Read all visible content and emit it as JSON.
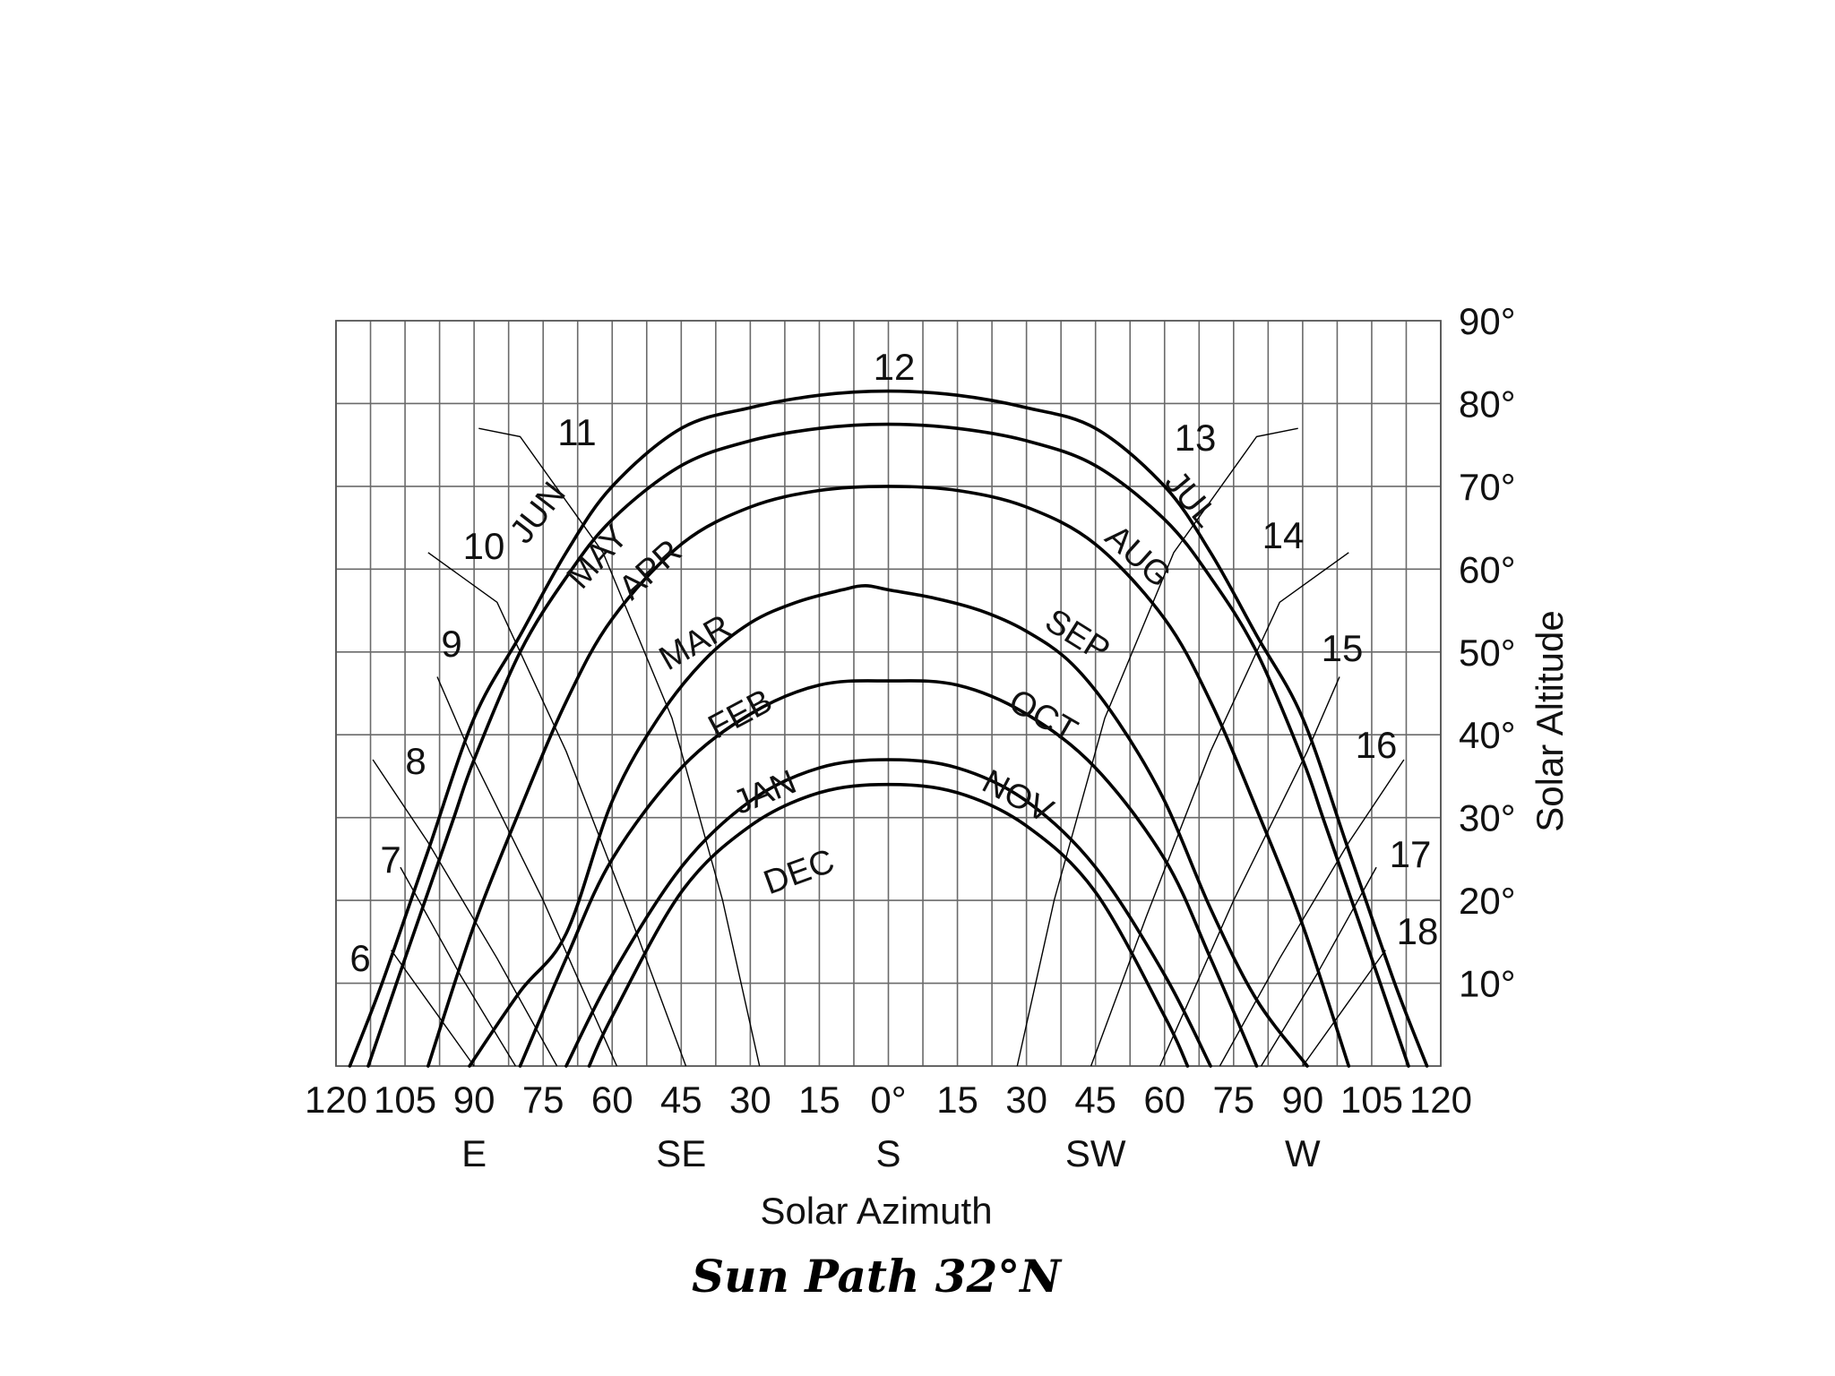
{
  "chart_data": {
    "type": "line",
    "title": "Sun Path 32°N",
    "xlabel": "Solar Azimuth",
    "ylabel": "Solar Altitude",
    "xlim": [
      -120,
      120
    ],
    "ylim": [
      0,
      90
    ],
    "grid": true,
    "x_ticks": [
      {
        "value": -120,
        "label": "120"
      },
      {
        "value": -105,
        "label": "105"
      },
      {
        "value": -90,
        "label": "90"
      },
      {
        "value": -75,
        "label": "75"
      },
      {
        "value": -60,
        "label": "60"
      },
      {
        "value": -45,
        "label": "45"
      },
      {
        "value": -30,
        "label": "30"
      },
      {
        "value": -15,
        "label": "15"
      },
      {
        "value": 0,
        "label": "0°"
      },
      {
        "value": 15,
        "label": "15"
      },
      {
        "value": 30,
        "label": "30"
      },
      {
        "value": 45,
        "label": "45"
      },
      {
        "value": 60,
        "label": "60"
      },
      {
        "value": 75,
        "label": "75"
      },
      {
        "value": 90,
        "label": "90"
      },
      {
        "value": 105,
        "label": "105"
      },
      {
        "value": 120,
        "label": "120"
      }
    ],
    "compass_labels": [
      {
        "value": -90,
        "label": "E"
      },
      {
        "value": -45,
        "label": "SE"
      },
      {
        "value": 0,
        "label": "S"
      },
      {
        "value": 45,
        "label": "SW"
      },
      {
        "value": 90,
        "label": "W"
      }
    ],
    "y_ticks": [
      {
        "value": 10,
        "label": "10°"
      },
      {
        "value": 20,
        "label": "20°"
      },
      {
        "value": 30,
        "label": "30°"
      },
      {
        "value": 40,
        "label": "40°"
      },
      {
        "value": 50,
        "label": "50°"
      },
      {
        "value": 60,
        "label": "60°"
      },
      {
        "value": 70,
        "label": "70°"
      },
      {
        "value": 80,
        "label": "80°"
      },
      {
        "value": 90,
        "label": "90°"
      }
    ],
    "month_series": [
      {
        "name": "JUN",
        "x": [
          -117,
          -110,
          -100,
          -90,
          -80,
          -70,
          -60,
          -45,
          -30,
          -15,
          0,
          15,
          30,
          45,
          60,
          70,
          80,
          90,
          100,
          110,
          117
        ],
        "y": [
          0,
          10,
          26,
          42,
          52,
          62,
          70,
          77,
          79.5,
          81,
          81.5,
          81,
          79.5,
          77,
          70,
          62,
          52,
          42,
          26,
          10,
          0
        ]
      },
      {
        "name": "MAY",
        "x": [
          -113,
          -105,
          -95,
          -90,
          -80,
          -70,
          -60,
          -45,
          -30,
          -15,
          0,
          15,
          30,
          45,
          60,
          70,
          80,
          90,
          95,
          105,
          113
        ],
        "y": [
          0,
          13,
          29,
          37,
          50,
          59,
          66,
          72.5,
          75.5,
          77,
          77.5,
          77,
          75.5,
          72.5,
          66,
          59,
          50,
          37,
          29,
          13,
          0
        ]
      },
      {
        "name": "APR",
        "x": [
          -100,
          -90,
          -80,
          -70,
          -60,
          -45,
          -30,
          -15,
          0,
          15,
          30,
          45,
          60,
          70,
          80,
          90,
          100
        ],
        "y": [
          0,
          17,
          31,
          44,
          54,
          63,
          67.5,
          69.5,
          70,
          69.5,
          67.5,
          63,
          54,
          44,
          31,
          17,
          0
        ]
      },
      {
        "name": "MAR",
        "x": [
          -91,
          -80,
          -70,
          -60,
          -50,
          -40,
          -30,
          -20,
          -10,
          -5,
          0,
          10,
          20,
          30,
          40,
          50,
          60,
          70,
          80,
          91
        ],
        "y": [
          0,
          9,
          16,
          32,
          42,
          49,
          53.5,
          56,
          57.5,
          58,
          57.5,
          56.5,
          55,
          52.5,
          48.5,
          41.5,
          32,
          19,
          8,
          0
        ]
      },
      {
        "name": "FEB",
        "x": [
          -80,
          -70,
          -60,
          -45,
          -30,
          -15,
          0,
          15,
          30,
          45,
          60,
          70,
          80
        ],
        "y": [
          0,
          13,
          25,
          36,
          42.5,
          46,
          46.5,
          46,
          42.5,
          36,
          25,
          13,
          0
        ]
      },
      {
        "name": "JAN",
        "x": [
          -70,
          -60,
          -45,
          -30,
          -15,
          0,
          15,
          30,
          45,
          60,
          70
        ],
        "y": [
          0,
          11,
          24,
          32,
          36,
          37,
          36,
          32,
          24,
          11,
          0
        ]
      },
      {
        "name": "DEC",
        "x": [
          -65,
          -60,
          -45,
          -30,
          -15,
          0,
          15,
          30,
          45,
          60,
          65
        ],
        "y": [
          0,
          6,
          21,
          29,
          33,
          34,
          33,
          29,
          21,
          6,
          0
        ]
      }
    ],
    "month_labels": [
      "JUN",
      "MAY",
      "APR",
      "MAR",
      "FEB",
      "JAN",
      "DEC",
      "JUL",
      "AUG",
      "SEP",
      "OCT",
      "NOV"
    ],
    "hour_labels": [
      "6",
      "7",
      "8",
      "9",
      "10",
      "11",
      "12",
      "13",
      "14",
      "15",
      "16",
      "17",
      "18"
    ]
  }
}
